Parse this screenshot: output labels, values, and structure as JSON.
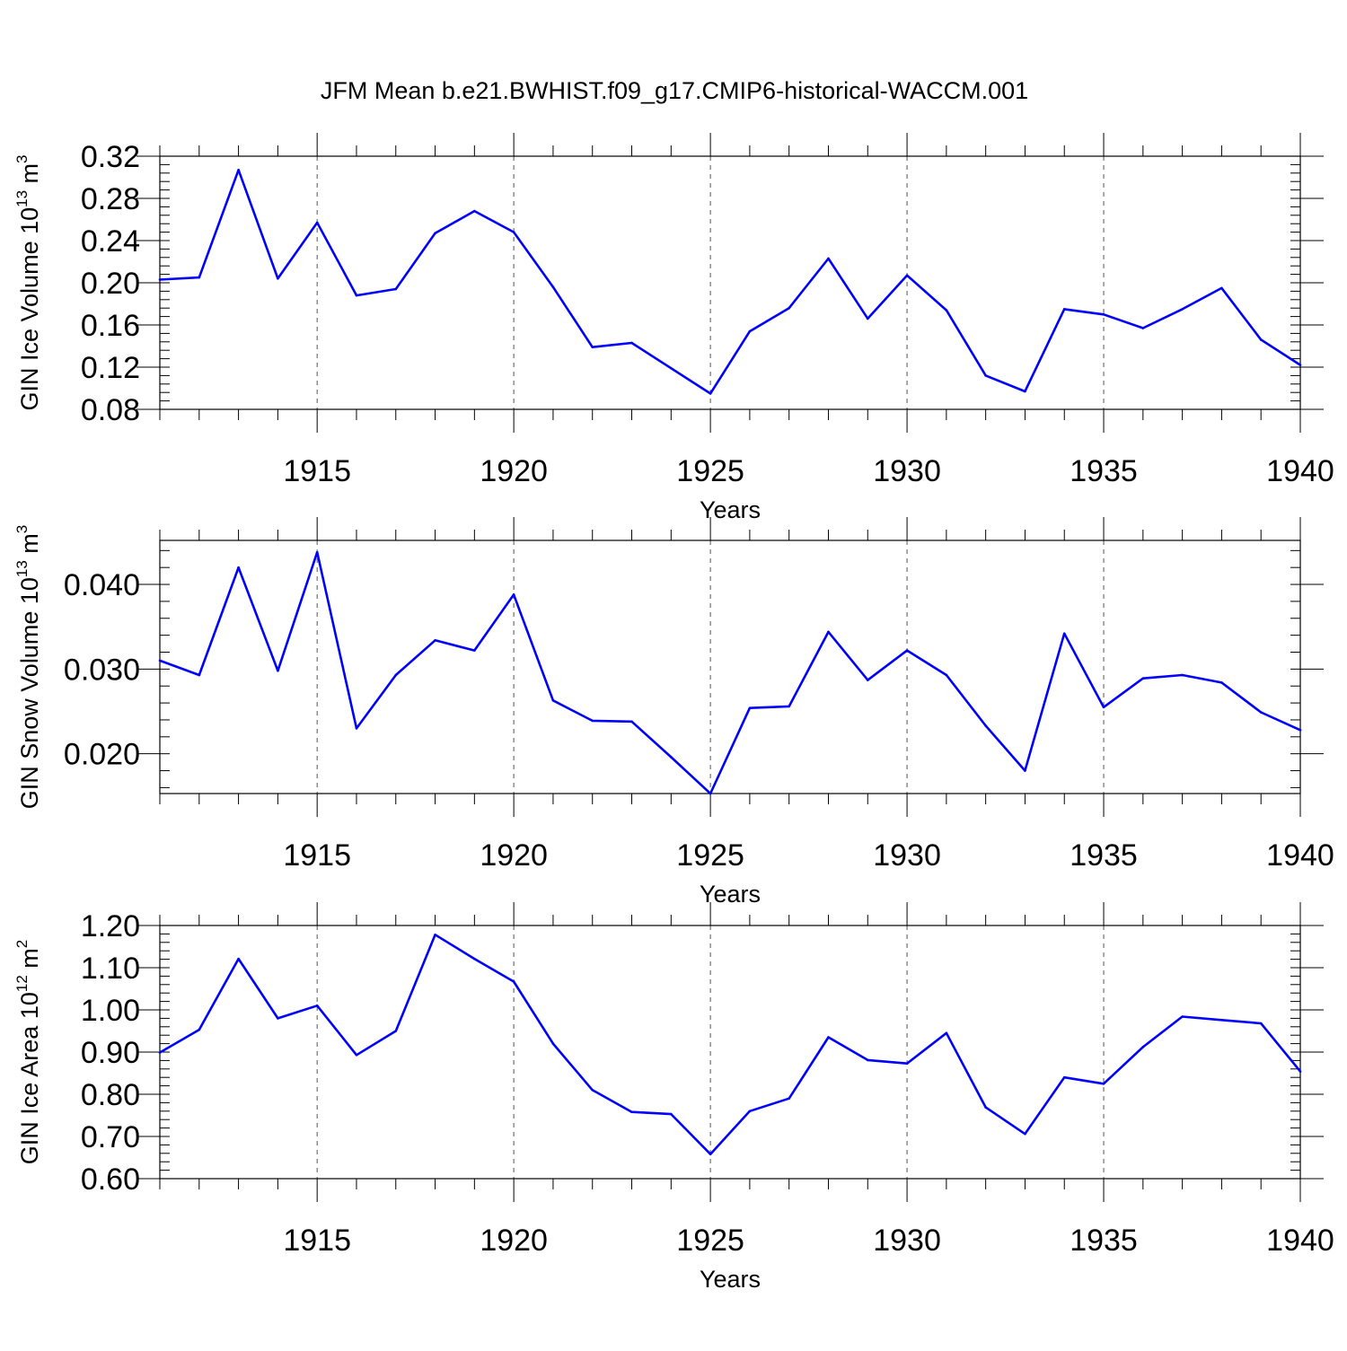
{
  "title": "JFM Mean b.e21.BWHIST.f09_g17.CMIP6-historical-WACCM.001",
  "colors": {
    "line": "#0000ff",
    "axis": "#000000",
    "grid": "#555555"
  },
  "chart_data": [
    {
      "type": "line",
      "name": "GIN Ice Volume",
      "ylabel": {
        "text": "GIN Ice Volume 10",
        "exp": "13",
        "unit": " m",
        "unit_exp": "3"
      },
      "xlabel": "Years",
      "xlim": [
        1911,
        1940
      ],
      "ylim": [
        0.08,
        0.32
      ],
      "yticks": [
        0.08,
        0.12,
        0.16,
        0.2,
        0.24,
        0.28,
        0.32
      ],
      "ytick_labels": [
        "0.08",
        "0.12",
        "0.16",
        "0.20",
        "0.24",
        "0.28",
        "0.32"
      ],
      "yminor_step": 0.008,
      "xticks": [
        1915,
        1920,
        1925,
        1930,
        1935,
        1940
      ],
      "xtick_labels": [
        "1915",
        "1920",
        "1925",
        "1930",
        "1935",
        "1940"
      ],
      "x": [
        1911,
        1912,
        1913,
        1914,
        1915,
        1916,
        1917,
        1918,
        1919,
        1920,
        1921,
        1922,
        1923,
        1924,
        1925,
        1926,
        1927,
        1928,
        1929,
        1930,
        1931,
        1932,
        1933,
        1934,
        1935,
        1936,
        1937,
        1938,
        1939,
        1940
      ],
      "values": [
        0.203,
        0.205,
        0.307,
        0.204,
        0.257,
        0.188,
        0.194,
        0.247,
        0.268,
        0.248,
        0.196,
        0.139,
        0.143,
        0.119,
        0.095,
        0.154,
        0.176,
        0.223,
        0.166,
        0.207,
        0.174,
        0.112,
        0.097,
        0.175,
        0.17,
        0.157,
        0.175,
        0.195,
        0.146,
        0.122
      ]
    },
    {
      "type": "line",
      "name": "GIN Snow Volume",
      "ylabel": {
        "text": "GIN Snow Volume 10",
        "exp": "13",
        "unit": " m",
        "unit_exp": "3"
      },
      "xlabel": "Years",
      "xlim": [
        1911,
        1940
      ],
      "ylim": [
        0.0153,
        0.0452
      ],
      "yticks": [
        0.02,
        0.03,
        0.04
      ],
      "ytick_labels": [
        "0.020",
        "0.030",
        "0.040"
      ],
      "yminor_step": 0.002,
      "xticks": [
        1915,
        1920,
        1925,
        1930,
        1935,
        1940
      ],
      "xtick_labels": [
        "1915",
        "1920",
        "1925",
        "1930",
        "1935",
        "1940"
      ],
      "x": [
        1911,
        1912,
        1913,
        1914,
        1915,
        1916,
        1917,
        1918,
        1919,
        1920,
        1921,
        1922,
        1923,
        1924,
        1925,
        1926,
        1927,
        1928,
        1929,
        1930,
        1931,
        1932,
        1933,
        1934,
        1935,
        1936,
        1937,
        1938,
        1939,
        1940
      ],
      "values": [
        0.031,
        0.0293,
        0.042,
        0.0298,
        0.0438,
        0.023,
        0.0293,
        0.0334,
        0.0322,
        0.0388,
        0.0263,
        0.0239,
        0.0238,
        0.0196,
        0.0153,
        0.0254,
        0.0256,
        0.0344,
        0.0287,
        0.0322,
        0.0293,
        0.0233,
        0.018,
        0.0342,
        0.0255,
        0.0289,
        0.0293,
        0.0284,
        0.0249,
        0.0228
      ]
    },
    {
      "type": "line",
      "name": "GIN Ice Area",
      "ylabel": {
        "text": "GIN Ice Area 10",
        "exp": "12",
        "unit": " m",
        "unit_exp": "2"
      },
      "xlabel": "Years",
      "xlim": [
        1911,
        1940
      ],
      "ylim": [
        0.6,
        1.2
      ],
      "yticks": [
        0.6,
        0.7,
        0.8,
        0.9,
        1.0,
        1.1,
        1.2
      ],
      "ytick_labels": [
        "0.60",
        "0.70",
        "0.80",
        "0.90",
        "1.00",
        "1.10",
        "1.20"
      ],
      "yminor_step": 0.02,
      "xticks": [
        1915,
        1920,
        1925,
        1930,
        1935,
        1940
      ],
      "xtick_labels": [
        "1915",
        "1920",
        "1925",
        "1930",
        "1935",
        "1940"
      ],
      "x": [
        1911,
        1912,
        1913,
        1914,
        1915,
        1916,
        1917,
        1918,
        1919,
        1920,
        1921,
        1922,
        1923,
        1924,
        1925,
        1926,
        1927,
        1928,
        1929,
        1930,
        1931,
        1932,
        1933,
        1934,
        1935,
        1936,
        1937,
        1938,
        1939,
        1940
      ],
      "values": [
        0.899,
        0.953,
        1.121,
        0.98,
        1.01,
        0.893,
        0.95,
        1.178,
        1.121,
        1.067,
        0.92,
        0.81,
        0.758,
        0.753,
        0.658,
        0.76,
        0.79,
        0.935,
        0.881,
        0.873,
        0.945,
        0.769,
        0.706,
        0.84,
        0.825,
        0.912,
        0.984,
        0.976,
        0.968,
        0.854
      ]
    }
  ]
}
